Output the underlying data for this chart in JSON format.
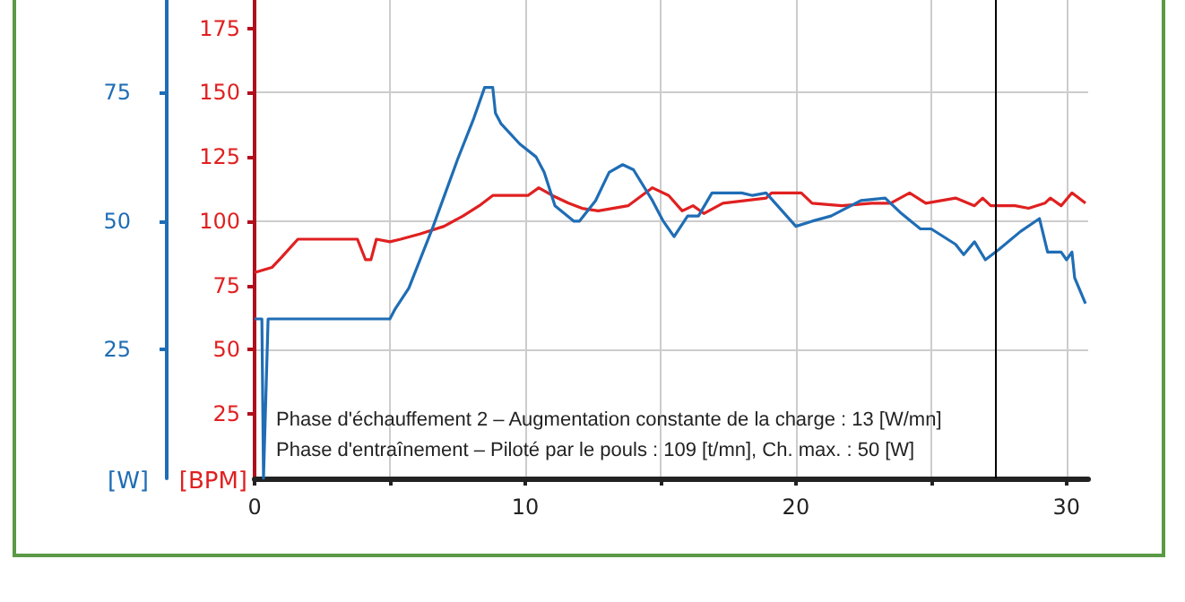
{
  "chart_data": {
    "type": "line",
    "ylabel": "[BPM]",
    "y2label": "[W]",
    "xlim": [
      0,
      30.8
    ],
    "xticks": [
      0,
      {
        "value": 5,
        "label": null
      },
      10,
      {
        "value": 15,
        "label": null
      },
      20,
      {
        "value": 25,
        "label": null
      },
      30
    ],
    "ylim": [
      0,
      186
    ],
    "yticks": [
      25,
      50,
      75,
      100,
      125,
      150,
      175
    ],
    "y2lim": [
      0,
      93
    ],
    "y2ticks": [
      25,
      50,
      75
    ],
    "grid": true,
    "marker": "none",
    "line_style": "solid",
    "ref_lines": [
      {
        "axis": "x",
        "value": 27.4,
        "color": "#000000"
      }
    ],
    "annotations": [
      "Phase d'échauffement 2 – Augmentation constante de la charge : 13 [W/mn]",
      "Phase d'entraînement – Piloté par le pouls : 109 [t/mn], Ch. max. : 50 [W]"
    ],
    "series": [
      {
        "color": "#e02020",
        "x": [
          0,
          0.64,
          1.0,
          1.6,
          2.4,
          3.8,
          4.1,
          4.3,
          4.5,
          5.0,
          5.4,
          6.1,
          7.0,
          7.7,
          8.3,
          8.8,
          9.7,
          10.1,
          10.5,
          11.0,
          11.6,
          12.1,
          12.7,
          13.8,
          14.7,
          15.3,
          15.8,
          16.2,
          16.6,
          17.3,
          18.9,
          19.1,
          20.2,
          20.6,
          21.7,
          22.8,
          23.5,
          24.2,
          24.8,
          25.9,
          26.6,
          26.9,
          27.2,
          28.1,
          28.6,
          29.2,
          29.4,
          29.8,
          30.2,
          30.7
        ],
        "values": [
          80,
          82,
          86,
          93,
          93,
          93,
          85,
          85,
          93,
          92,
          93,
          95,
          98,
          102,
          106,
          110,
          110,
          110,
          113,
          110,
          107,
          105,
          104,
          106,
          113,
          110,
          104,
          106,
          103,
          107,
          109,
          111,
          111,
          107,
          106,
          107,
          107,
          111,
          107,
          109,
          106,
          109,
          106,
          106,
          105,
          107,
          109,
          106,
          111,
          107
        ]
      },
      {
        "color": "#1f6db5",
        "axis": "y2",
        "x": [
          0,
          0.27,
          0.33,
          0.5,
          5.0,
          5.2,
          5.7,
          6.6,
          7.5,
          8.1,
          8.5,
          8.8,
          8.9,
          9.1,
          9.8,
          10.4,
          10.7,
          11.1,
          11.8,
          12.0,
          12.6,
          13.1,
          13.6,
          14.0,
          14.7,
          15.1,
          15.5,
          16.0,
          16.4,
          16.9,
          18.0,
          18.4,
          18.9,
          20.0,
          20.6,
          21.3,
          22.4,
          23.3,
          23.9,
          24.6,
          25.0,
          25.9,
          26.2,
          26.6,
          27.0,
          27.5,
          28.3,
          29.0,
          29.3,
          29.8,
          30.0,
          30.2,
          30.3,
          30.7
        ],
        "values": [
          31,
          31,
          0,
          31,
          31,
          33,
          37,
          49,
          62,
          70,
          76,
          76,
          71,
          69,
          65,
          62.5,
          59.5,
          53,
          50,
          50,
          54,
          59.5,
          61,
          60,
          54,
          50,
          47,
          51,
          51,
          55.5,
          55.5,
          55,
          55.5,
          49,
          50,
          51,
          54,
          54.5,
          51.5,
          48.5,
          48.5,
          45.5,
          43.5,
          46,
          42.5,
          44.5,
          48,
          50.5,
          44,
          44,
          42.5,
          44,
          39,
          34
        ]
      }
    ]
  }
}
